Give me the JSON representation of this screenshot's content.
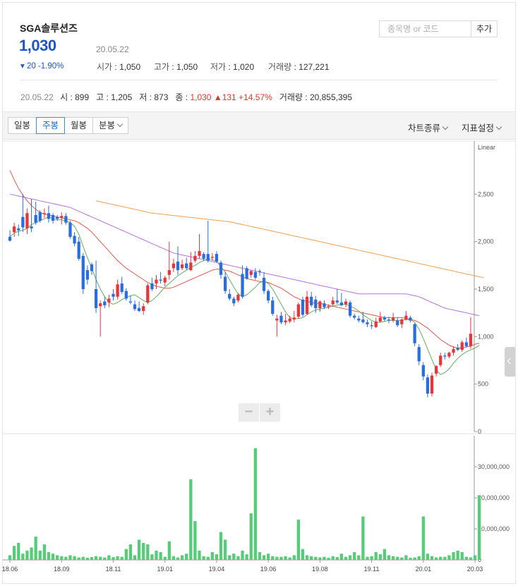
{
  "stock": {
    "name": "SGA솔루션즈",
    "price": "1,030",
    "change": "▾ 20 -1.90%",
    "date": "20.05.22",
    "open_label": "시가",
    "open": "1,050",
    "high_label": "고가",
    "high": "1,050",
    "low_label": "저가",
    "low": "1,020",
    "vol_label": "거래량",
    "volume": "127,221"
  },
  "search": {
    "placeholder": "종목명 or 코드",
    "add_label": "추가"
  },
  "summary": {
    "date": "20.05.22",
    "open_label": "시",
    "open": "899",
    "high_label": "고",
    "high": "1,205",
    "low_label": "저",
    "low": "873",
    "close_label": "종",
    "close": "1,030",
    "diff": "▲131",
    "pct": "+14.57%",
    "vol_label": "거래량",
    "volume": "20,855,395"
  },
  "toolbar": {
    "period_tabs": [
      "일봉",
      "주봉",
      "월봉",
      "분봉"
    ],
    "active_tab": "주봉",
    "chart_type": "차트종류",
    "indicator": "지표설정"
  },
  "colors": {
    "up": "#e8353a",
    "down": "#2a6de0",
    "ma5": "#5fb35f",
    "ma20": "#e05a4a",
    "ma60": "#b870e0",
    "ma120": "#f0a050",
    "volume": "#55cc77",
    "accent": "#1d55c6"
  },
  "icons": {
    "collapse": "chevron-left-icon",
    "zoom_out": "minus-icon",
    "zoom_in": "plus-icon"
  },
  "chart_data": [
    {
      "type": "candlestick",
      "scale_label": "Linear",
      "yticks": [
        0,
        500,
        1000,
        1500,
        2000,
        2500
      ],
      "ylim": [
        0,
        3000
      ],
      "candles": [
        [
          2050,
          2120,
          2000,
          2010
        ],
        [
          2100,
          2200,
          2050,
          2160
        ],
        [
          2140,
          2180,
          2060,
          2120
        ],
        [
          2260,
          2500,
          2100,
          2150
        ],
        [
          2140,
          2350,
          2080,
          2300
        ],
        [
          2160,
          2450,
          2100,
          2140
        ],
        [
          2280,
          2420,
          2180,
          2200
        ],
        [
          2310,
          2330,
          2200,
          2220
        ],
        [
          2290,
          2350,
          2250,
          2300
        ],
        [
          2300,
          2380,
          2200,
          2240
        ],
        [
          2280,
          2300,
          2190,
          2220
        ],
        [
          2260,
          2280,
          2220,
          2240
        ],
        [
          2250,
          2310,
          2180,
          2270
        ],
        [
          2270,
          2300,
          2180,
          2200
        ],
        [
          2200,
          2220,
          2030,
          2050
        ],
        [
          2060,
          2100,
          1950,
          1980
        ],
        [
          2000,
          2050,
          1800,
          1820
        ],
        [
          1850,
          1880,
          1450,
          1500
        ],
        [
          1700,
          1750,
          1550,
          1600
        ],
        [
          1760,
          1780,
          1650,
          1690
        ],
        [
          1500,
          1800,
          1250,
          1300
        ],
        [
          1320,
          1380,
          1000,
          1350
        ],
        [
          1370,
          1420,
          1300,
          1330
        ],
        [
          1360,
          1440,
          1310,
          1400
        ],
        [
          1450,
          1500,
          1380,
          1420
        ],
        [
          1420,
          1600,
          1390,
          1550
        ],
        [
          1560,
          1630,
          1450,
          1470
        ],
        [
          1480,
          1510,
          1380,
          1400
        ],
        [
          1370,
          1430,
          1340,
          1360
        ],
        [
          1340,
          1380,
          1270,
          1290
        ],
        [
          1300,
          1370,
          1260,
          1270
        ],
        [
          1270,
          1350,
          1230,
          1320
        ],
        [
          1360,
          1560,
          1340,
          1540
        ],
        [
          1560,
          1620,
          1480,
          1500
        ],
        [
          1560,
          1650,
          1500,
          1600
        ],
        [
          1600,
          1680,
          1560,
          1590
        ],
        [
          1570,
          1640,
          1530,
          1620
        ],
        [
          1650,
          2000,
          1600,
          1700
        ],
        [
          1720,
          1820,
          1680,
          1770
        ],
        [
          1790,
          1950,
          1650,
          1700
        ],
        [
          1720,
          1810,
          1700,
          1760
        ],
        [
          1770,
          1830,
          1700,
          1720
        ],
        [
          1700,
          1890,
          1690,
          1780
        ],
        [
          1800,
          1900,
          1780,
          1850
        ],
        [
          1850,
          2080,
          1820,
          1900
        ],
        [
          1870,
          1890,
          1800,
          1820
        ],
        [
          1870,
          2220,
          1780,
          1800
        ],
        [
          1830,
          1880,
          1800,
          1840
        ],
        [
          1870,
          1900,
          1780,
          1790
        ],
        [
          1780,
          1800,
          1610,
          1650
        ],
        [
          1630,
          1680,
          1450,
          1480
        ],
        [
          1450,
          1500,
          1380,
          1400
        ],
        [
          1400,
          1420,
          1320,
          1350
        ],
        [
          1380,
          1460,
          1360,
          1440
        ],
        [
          1660,
          1750,
          1400,
          1420
        ],
        [
          1720,
          1740,
          1600,
          1610
        ],
        [
          1650,
          1700,
          1620,
          1690
        ],
        [
          1680,
          1720,
          1600,
          1620
        ],
        [
          1690,
          1710,
          1640,
          1680
        ],
        [
          1620,
          1680,
          1450,
          1480
        ],
        [
          1480,
          1500,
          1350,
          1380
        ],
        [
          1380,
          1420,
          1220,
          1240
        ],
        [
          1170,
          1230,
          1000,
          1190
        ],
        [
          1220,
          1260,
          1130,
          1150
        ],
        [
          1150,
          1240,
          1120,
          1170
        ],
        [
          1160,
          1220,
          1140,
          1190
        ],
        [
          1180,
          1270,
          1150,
          1200
        ],
        [
          1210,
          1360,
          1190,
          1340
        ],
        [
          1390,
          1420,
          1210,
          1230
        ],
        [
          1240,
          1480,
          1230,
          1420
        ],
        [
          1420,
          1470,
          1310,
          1330
        ],
        [
          1390,
          1430,
          1250,
          1300
        ],
        [
          1300,
          1380,
          1260,
          1370
        ],
        [
          1350,
          1380,
          1290,
          1310
        ],
        [
          1310,
          1340,
          1290,
          1320
        ],
        [
          1340,
          1420,
          1320,
          1380
        ],
        [
          1380,
          1500,
          1340,
          1360
        ],
        [
          1360,
          1460,
          1320,
          1330
        ],
        [
          1340,
          1400,
          1310,
          1370
        ],
        [
          1360,
          1380,
          1200,
          1220
        ],
        [
          1220,
          1240,
          1180,
          1200
        ],
        [
          1190,
          1220,
          1150,
          1170
        ],
        [
          1180,
          1260,
          1140,
          1150
        ],
        [
          1150,
          1180,
          1100,
          1130
        ],
        [
          1120,
          1160,
          1080,
          1110
        ],
        [
          1100,
          1200,
          1090,
          1160
        ],
        [
          1160,
          1260,
          1150,
          1200
        ],
        [
          1200,
          1220,
          1160,
          1180
        ],
        [
          1180,
          1210,
          1140,
          1170
        ],
        [
          1170,
          1250,
          1150,
          1200
        ],
        [
          1170,
          1200,
          1100,
          1120
        ],
        [
          1130,
          1190,
          1090,
          1180
        ],
        [
          1180,
          1270,
          1170,
          1220
        ],
        [
          1200,
          1220,
          1150,
          1170
        ],
        [
          1130,
          1140,
          900,
          930
        ],
        [
          890,
          920,
          700,
          740
        ],
        [
          700,
          730,
          540,
          580
        ],
        [
          570,
          600,
          360,
          400
        ],
        [
          400,
          620,
          370,
          590
        ],
        [
          610,
          700,
          580,
          690
        ],
        [
          700,
          830,
          680,
          800
        ],
        [
          800,
          830,
          760,
          790
        ],
        [
          790,
          840,
          770,
          830
        ],
        [
          830,
          900,
          800,
          870
        ],
        [
          880,
          920,
          850,
          860
        ],
        [
          860,
          960,
          840,
          940
        ],
        [
          940,
          990,
          890,
          899
        ],
        [
          899,
          1205,
          873,
          1030
        ]
      ],
      "ma5": [
        2050,
        2090,
        2110,
        2120,
        2140,
        2180,
        2200,
        2220,
        2240,
        2260,
        2240,
        2230,
        2230,
        2220,
        2200,
        2160,
        2080,
        1950,
        1830,
        1720,
        1600,
        1500,
        1420,
        1360,
        1340,
        1360,
        1390,
        1410,
        1430,
        1440,
        1410,
        1380,
        1360,
        1380,
        1420,
        1470,
        1520,
        1560,
        1600,
        1640,
        1670,
        1700,
        1730,
        1750,
        1780,
        1800,
        1820,
        1810,
        1790,
        1740,
        1680,
        1600,
        1520,
        1450,
        1420,
        1440,
        1480,
        1520,
        1570,
        1580,
        1560,
        1500,
        1420,
        1340,
        1260,
        1200,
        1190,
        1190,
        1200,
        1230,
        1260,
        1280,
        1290,
        1300,
        1310,
        1320,
        1330,
        1340,
        1340,
        1320,
        1300,
        1270,
        1230,
        1200,
        1170,
        1150,
        1150,
        1160,
        1170,
        1170,
        1170,
        1170,
        1180,
        1180,
        1150,
        1080,
        980,
        870,
        760,
        650,
        600,
        620,
        660,
        720,
        770,
        810,
        840,
        860,
        880,
        910
      ],
      "ma20": [
        2750,
        2650,
        2560,
        2490,
        2430,
        2380,
        2340,
        2310,
        2290,
        2280,
        2270,
        2260,
        2250,
        2240,
        2230,
        2220,
        2200,
        2170,
        2140,
        2100,
        2050,
        2000,
        1950,
        1900,
        1850,
        1800,
        1760,
        1720,
        1690,
        1660,
        1630,
        1600,
        1570,
        1550,
        1530,
        1520,
        1510,
        1510,
        1520,
        1540,
        1560,
        1580,
        1600,
        1620,
        1640,
        1660,
        1680,
        1700,
        1710,
        1710,
        1700,
        1690,
        1670,
        1650,
        1630,
        1610,
        1600,
        1590,
        1580,
        1580,
        1570,
        1550,
        1530,
        1510,
        1480,
        1450,
        1420,
        1400,
        1380,
        1370,
        1360,
        1350,
        1350,
        1340,
        1330,
        1320,
        1310,
        1300,
        1290,
        1280,
        1270,
        1260,
        1250,
        1240,
        1230,
        1220,
        1210,
        1200,
        1200,
        1200,
        1200,
        1200,
        1190,
        1180,
        1170,
        1150,
        1120,
        1090,
        1050,
        1010,
        970,
        940,
        910,
        890,
        880,
        880,
        890,
        900,
        920,
        930
      ],
      "ma60": [
        2500,
        2490,
        2480,
        2470,
        2460,
        2450,
        2440,
        2430,
        2420,
        2410,
        2400,
        2390,
        2380,
        2370,
        2360,
        2340,
        2320,
        2300,
        2280,
        2260,
        2240,
        2220,
        2200,
        2180,
        2160,
        2140,
        2120,
        2100,
        2080,
        2060,
        2040,
        2020,
        2000,
        1980,
        1960,
        1940,
        1920,
        1900,
        1880,
        1870,
        1860,
        1850,
        1840,
        1830,
        1820,
        1810,
        1800,
        1790,
        1780,
        1770,
        1760,
        1750,
        1740,
        1730,
        1720,
        1710,
        1700,
        1690,
        1680,
        1670,
        1660,
        1650,
        1640,
        1630,
        1620,
        1610,
        1600,
        1590,
        1580,
        1570,
        1560,
        1550,
        1540,
        1530,
        1520,
        1510,
        1500,
        1490,
        1480,
        1470,
        1460,
        1450,
        1450,
        1450,
        1450,
        1450,
        1450,
        1450,
        1450,
        1450,
        1450,
        1450,
        1450,
        1440,
        1430,
        1420,
        1400,
        1380,
        1360,
        1340,
        1320,
        1300,
        1290,
        1280,
        1270,
        1260,
        1250,
        1240,
        1230,
        1220
      ],
      "ma120": {
        "start_index": 20,
        "values": [
          2430,
          2420,
          2410,
          2400,
          2390,
          2380,
          2370,
          2360,
          2350,
          2340,
          2330,
          2320,
          2310,
          2300,
          2295,
          2290,
          2285,
          2280,
          2275,
          2270,
          2265,
          2260,
          2255,
          2250,
          2245,
          2240,
          2235,
          2230,
          2225,
          2220,
          2215,
          2210,
          2200,
          2190,
          2180,
          2170,
          2160,
          2150,
          2140,
          2130,
          2120,
          2110,
          2100,
          2090,
          2080,
          2070,
          2060,
          2050,
          2040,
          2030,
          2020,
          2010,
          2000,
          1990,
          1980,
          1970,
          1960,
          1950,
          1940,
          1930,
          1920,
          1910,
          1900,
          1890,
          1880,
          1870,
          1860,
          1850,
          1840,
          1830,
          1820,
          1810,
          1800,
          1790,
          1780,
          1770,
          1760,
          1750,
          1740,
          1730,
          1720,
          1710,
          1700,
          1690,
          1680,
          1670,
          1660,
          1650,
          1640,
          1630,
          1620
        ]
      }
    },
    {
      "type": "bar",
      "yticks": [
        "0",
        "10,000,000",
        "20,000,000",
        "30,000,000"
      ],
      "ylim": [
        0,
        40000000
      ],
      "values": [
        1500000,
        4500000,
        5500000,
        2000000,
        3000000,
        4000000,
        7500000,
        3000000,
        5000000,
        2500000,
        2000000,
        1500000,
        1200000,
        1000000,
        1500000,
        1200000,
        800000,
        1000000,
        700000,
        900000,
        1200000,
        1000000,
        800000,
        1500000,
        900000,
        1200000,
        1000000,
        3500000,
        5000000,
        1500000,
        6500000,
        5500000,
        5000000,
        1800000,
        3000000,
        2500000,
        1000000,
        6000000,
        1200000,
        800000,
        1500000,
        2000000,
        26000000,
        12500000,
        3000000,
        1200000,
        1000000,
        2500000,
        1800000,
        9000000,
        6500000,
        1500000,
        2000000,
        1200000,
        3000000,
        1800000,
        15000000,
        36000000,
        2500000,
        1500000,
        2000000,
        1200000,
        1000000,
        1000000,
        1200000,
        800000,
        1500000,
        13000000,
        3500000,
        1500000,
        1200000,
        1000000,
        800000,
        1000000,
        700000,
        1200000,
        900000,
        2000000,
        1000000,
        1500000,
        2500000,
        1500000,
        14000000,
        1000000,
        1200000,
        2500000,
        1800000,
        3500000,
        1500000,
        1200000,
        1000000,
        800000,
        1500000,
        700000,
        800000,
        1200000,
        14000000,
        2000000,
        1200000,
        800000,
        1000000,
        1000000,
        1500000,
        2500000,
        3000000,
        2500000,
        1000000,
        800000,
        1500000,
        20855395
      ],
      "x_ticks": [
        [
          0,
          "18.06"
        ],
        [
          12,
          "18.09"
        ],
        [
          24,
          "18.11"
        ],
        [
          36,
          "19.01"
        ],
        [
          48,
          "19.04"
        ],
        [
          60,
          "19.06"
        ],
        [
          72,
          "19.08"
        ],
        [
          84,
          "19.11"
        ],
        [
          96,
          "20.01"
        ],
        [
          108,
          "20.03"
        ]
      ]
    }
  ]
}
